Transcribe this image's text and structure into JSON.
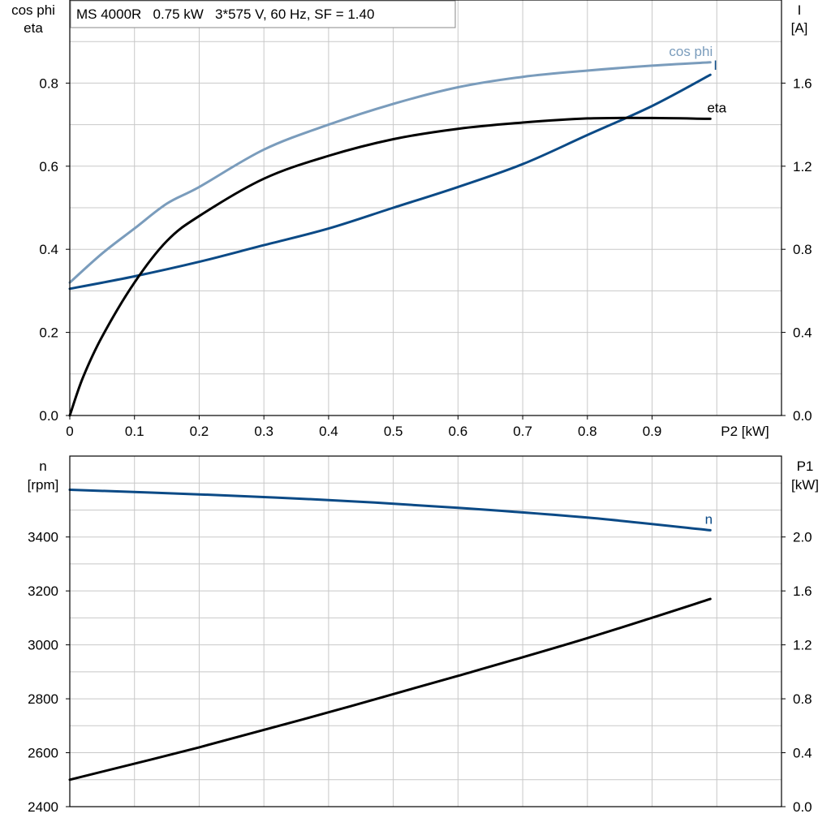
{
  "title": "MS 4000R   0.75 kW   3*575 V, 60 Hz, SF = 1.40",
  "colors": {
    "cosphi": "#7a9cbc",
    "current": "#0b4a86",
    "eta": "#000000",
    "speed": "#0b4a86",
    "p1": "#000000",
    "grid": "#c8c8c8"
  },
  "chart_data": [
    {
      "type": "line",
      "left_axis_label": [
        "cos phi",
        "eta"
      ],
      "right_axis_label": [
        "I",
        "[A]"
      ],
      "xlabel": "P2 [kW]",
      "x_ticks": [
        "0",
        "0.1",
        "0.2",
        "0.3",
        "0.4",
        "0.5",
        "0.6",
        "0.7",
        "0.8",
        "0.9"
      ],
      "xlim": [
        0,
        1.1
      ],
      "y_left_ticks": [
        "0.0",
        "0.2",
        "0.4",
        "0.6",
        "0.8"
      ],
      "ylim_left": [
        0,
        1.0
      ],
      "y_right_ticks": [
        "0.0",
        "0.4",
        "0.8",
        "1.2",
        "1.6"
      ],
      "ylim_right": [
        0,
        2.0
      ],
      "grid": true,
      "series": [
        {
          "name": "cos phi",
          "axis": "left",
          "x": [
            0,
            0.05,
            0.1,
            0.15,
            0.2,
            0.3,
            0.4,
            0.5,
            0.6,
            0.7,
            0.8,
            0.9,
            0.99
          ],
          "y": [
            0.32,
            0.39,
            0.45,
            0.51,
            0.55,
            0.64,
            0.7,
            0.75,
            0.79,
            0.815,
            0.83,
            0.842,
            0.85
          ]
        },
        {
          "name": "I",
          "axis": "right",
          "x": [
            0,
            0.1,
            0.2,
            0.3,
            0.4,
            0.5,
            0.6,
            0.7,
            0.8,
            0.9,
            0.99
          ],
          "y": [
            0.61,
            0.67,
            0.74,
            0.82,
            0.9,
            1.0,
            1.1,
            1.21,
            1.35,
            1.49,
            1.64
          ]
        },
        {
          "name": "eta",
          "axis": "left",
          "x": [
            0,
            0.02,
            0.05,
            0.1,
            0.15,
            0.2,
            0.3,
            0.4,
            0.5,
            0.6,
            0.7,
            0.8,
            0.9,
            0.99
          ],
          "y": [
            0.0,
            0.09,
            0.19,
            0.32,
            0.42,
            0.48,
            0.57,
            0.625,
            0.665,
            0.69,
            0.705,
            0.715,
            0.716,
            0.714
          ]
        }
      ]
    },
    {
      "type": "line",
      "left_axis_label": [
        "n",
        "[rpm]"
      ],
      "right_axis_label": [
        "P1",
        "[kW]"
      ],
      "xlim": [
        0,
        1.1
      ],
      "y_left_ticks": [
        "2400",
        "2600",
        "2800",
        "3000",
        "3200",
        "3400"
      ],
      "ylim_left": [
        2400,
        3700
      ],
      "y_right_ticks": [
        "0.0",
        "0.4",
        "0.8",
        "1.2",
        "1.6",
        "2.0"
      ],
      "ylim_right": [
        0,
        2.6
      ],
      "grid": true,
      "series": [
        {
          "name": "n",
          "axis": "left",
          "x": [
            0,
            0.2,
            0.4,
            0.6,
            0.8,
            0.99
          ],
          "y": [
            3575,
            3558,
            3537,
            3508,
            3472,
            3425
          ]
        },
        {
          "axis": "right",
          "x": [
            0,
            0.2,
            0.4,
            0.6,
            0.8,
            0.99
          ],
          "y": [
            0.2,
            0.44,
            0.7,
            0.97,
            1.25,
            1.54
          ]
        }
      ]
    }
  ]
}
